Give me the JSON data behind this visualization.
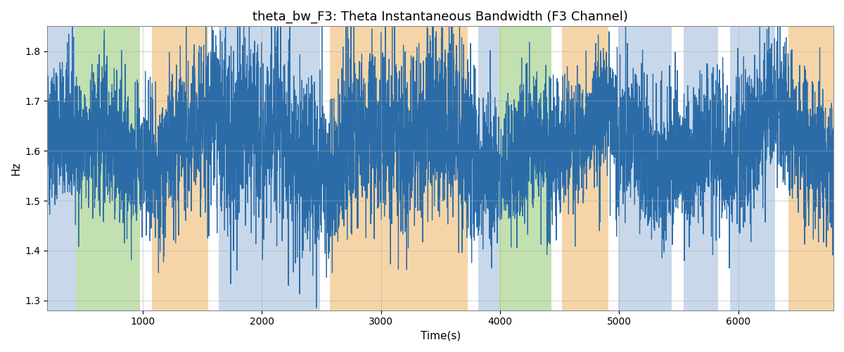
{
  "title": "theta_bw_F3: Theta Instantaneous Bandwidth (F3 Channel)",
  "xlabel": "Time(s)",
  "ylabel": "Hz",
  "xlim": [
    200,
    6800
  ],
  "ylim": [
    1.28,
    1.85
  ],
  "yticks": [
    1.3,
    1.4,
    1.5,
    1.6,
    1.7,
    1.8
  ],
  "xticks": [
    1000,
    2000,
    3000,
    4000,
    5000,
    6000
  ],
  "line_color": "#2b6ca8",
  "line_width": 0.9,
  "bg_color": "#ffffff",
  "bands": [
    {
      "xmin": 200,
      "xmax": 440,
      "color": "#c8d8ea",
      "alpha": 1.0
    },
    {
      "xmin": 440,
      "xmax": 980,
      "color": "#c2e0b0",
      "alpha": 1.0
    },
    {
      "xmin": 980,
      "xmax": 1080,
      "color": "#ffffff",
      "alpha": 1.0
    },
    {
      "xmin": 1080,
      "xmax": 1550,
      "color": "#f5d5a8",
      "alpha": 1.0
    },
    {
      "xmin": 1550,
      "xmax": 1640,
      "color": "#ffffff",
      "alpha": 1.0
    },
    {
      "xmin": 1640,
      "xmax": 2490,
      "color": "#c8d8ea",
      "alpha": 1.0
    },
    {
      "xmin": 2490,
      "xmax": 2570,
      "color": "#ffffff",
      "alpha": 1.0
    },
    {
      "xmin": 2570,
      "xmax": 3130,
      "color": "#f5d5a8",
      "alpha": 1.0
    },
    {
      "xmin": 3130,
      "xmax": 3730,
      "color": "#f5d5a8",
      "alpha": 1.0
    },
    {
      "xmin": 3730,
      "xmax": 3820,
      "color": "#ffffff",
      "alpha": 1.0
    },
    {
      "xmin": 3820,
      "xmax": 3990,
      "color": "#c8d8ea",
      "alpha": 1.0
    },
    {
      "xmin": 3990,
      "xmax": 4430,
      "color": "#c2e0b0",
      "alpha": 1.0
    },
    {
      "xmin": 4430,
      "xmax": 4520,
      "color": "#ffffff",
      "alpha": 1.0
    },
    {
      "xmin": 4520,
      "xmax": 4910,
      "color": "#f5d5a8",
      "alpha": 1.0
    },
    {
      "xmin": 4910,
      "xmax": 4990,
      "color": "#ffffff",
      "alpha": 1.0
    },
    {
      "xmin": 4990,
      "xmax": 5440,
      "color": "#c8d8ea",
      "alpha": 1.0
    },
    {
      "xmin": 5440,
      "xmax": 5540,
      "color": "#ffffff",
      "alpha": 1.0
    },
    {
      "xmin": 5540,
      "xmax": 5830,
      "color": "#c8d8ea",
      "alpha": 1.0
    },
    {
      "xmin": 5830,
      "xmax": 5930,
      "color": "#ffffff",
      "alpha": 1.0
    },
    {
      "xmin": 5930,
      "xmax": 6310,
      "color": "#c8d8ea",
      "alpha": 1.0
    },
    {
      "xmin": 6310,
      "xmax": 6420,
      "color": "#ffffff",
      "alpha": 1.0
    },
    {
      "xmin": 6420,
      "xmax": 6800,
      "color": "#f5d5a8",
      "alpha": 1.0
    }
  ],
  "seed": 42,
  "n_points": 6601
}
